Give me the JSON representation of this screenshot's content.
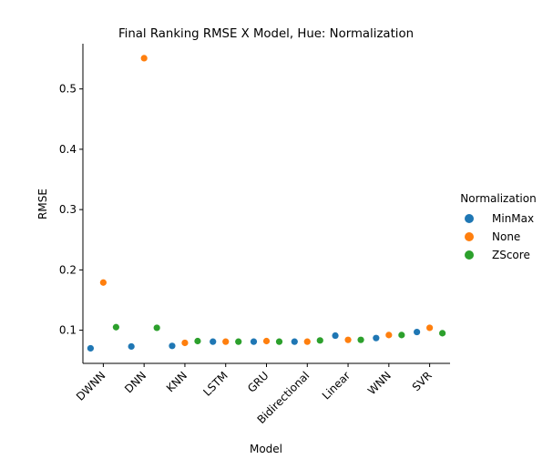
{
  "chart_data": {
    "type": "scatter",
    "title": "Final Ranking RMSE X Model, Hue: Normalization",
    "xlabel": "Model",
    "ylabel": "RMSE",
    "categories": [
      "DWNN",
      "DNN",
      "KNN",
      "LSTM",
      "GRU",
      "Bidirectional",
      "Linear",
      "WNN",
      "SVR"
    ],
    "ylim": [
      0.045,
      0.575
    ],
    "yticks": [
      0.1,
      0.2,
      0.3,
      0.4,
      0.5
    ],
    "ytick_labels": [
      "0.1",
      "0.2",
      "0.3",
      "0.4",
      "0.5"
    ],
    "grid": false,
    "legend": {
      "title": "Normalization",
      "placement": "right"
    },
    "series": [
      {
        "name": "MinMax",
        "color": "#1f77b4",
        "values": [
          0.07,
          0.073,
          0.074,
          0.081,
          0.081,
          0.081,
          0.091,
          0.087,
          0.097
        ]
      },
      {
        "name": "None",
        "color": "#ff7f0e",
        "values": [
          0.179,
          0.551,
          0.079,
          0.081,
          0.082,
          0.081,
          0.084,
          0.092,
          0.104
        ]
      },
      {
        "name": "ZScore",
        "color": "#2ca02c",
        "values": [
          0.105,
          0.104,
          0.082,
          0.081,
          0.081,
          0.083,
          0.084,
          0.092,
          0.095
        ]
      }
    ]
  }
}
